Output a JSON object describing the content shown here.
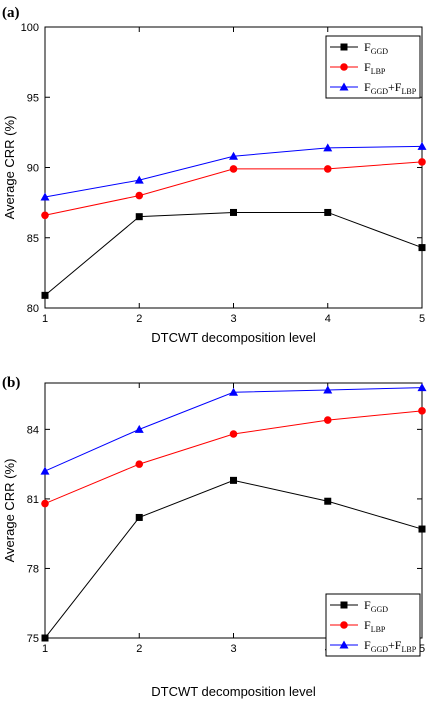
{
  "chart_data": [
    {
      "type": "line",
      "panel_label": "(a)",
      "xlabel": "DTCWT decomposition level",
      "ylabel": "Average CRR (%)",
      "x": [
        1,
        2,
        3,
        4,
        5
      ],
      "xlim": [
        1,
        5
      ],
      "ylim": [
        80,
        100
      ],
      "xticks": [
        "1",
        "2",
        "3",
        "4",
        "5"
      ],
      "yticks": [
        80,
        85,
        90,
        95,
        100
      ],
      "legend_position": "top-right",
      "series": [
        {
          "name": "F_GGD",
          "legend_main": "F",
          "legend_sub": "GGD",
          "color": "#000000",
          "marker": "square",
          "values": [
            80.9,
            86.5,
            86.8,
            86.8,
            84.3
          ]
        },
        {
          "name": "F_LBP",
          "legend_main": "F",
          "legend_sub": "LBP",
          "color": "#ff0000",
          "marker": "circle",
          "values": [
            86.6,
            88.0,
            89.9,
            89.9,
            90.4
          ]
        },
        {
          "name": "F_GGD+F_LBP",
          "legend_main": "F",
          "legend_sub": "GGD",
          "legend_main2": "+F",
          "legend_sub2": "LBP",
          "color": "#0000ff",
          "marker": "triangle",
          "values": [
            87.9,
            89.1,
            90.8,
            91.4,
            91.5
          ]
        }
      ]
    },
    {
      "type": "line",
      "panel_label": "(b)",
      "xlabel": "DTCWT decomposition level",
      "ylabel": "Average CRR (%)",
      "x": [
        1,
        2,
        3,
        4,
        5
      ],
      "xlim": [
        1,
        5
      ],
      "ylim": [
        75,
        86.0
      ],
      "xticks": [
        "1",
        "2",
        "3",
        "4",
        "5"
      ],
      "yticks": [
        75,
        78,
        81,
        84
      ],
      "legend_position": "bottom-right",
      "series": [
        {
          "name": "F_GGD",
          "legend_main": "F",
          "legend_sub": "GGD",
          "color": "#000000",
          "marker": "square",
          "values": [
            75.0,
            80.2,
            81.8,
            80.9,
            79.7
          ]
        },
        {
          "name": "F_LBP",
          "legend_main": "F",
          "legend_sub": "LBP",
          "color": "#ff0000",
          "marker": "circle",
          "values": [
            80.8,
            82.5,
            83.8,
            84.4,
            84.8
          ]
        },
        {
          "name": "F_GGD+F_LBP",
          "legend_main": "F",
          "legend_sub": "GGD",
          "legend_main2": "+F",
          "legend_sub2": "LBP",
          "color": "#0000ff",
          "marker": "triangle",
          "values": [
            82.2,
            84.0,
            85.6,
            85.7,
            85.8
          ]
        }
      ]
    }
  ]
}
